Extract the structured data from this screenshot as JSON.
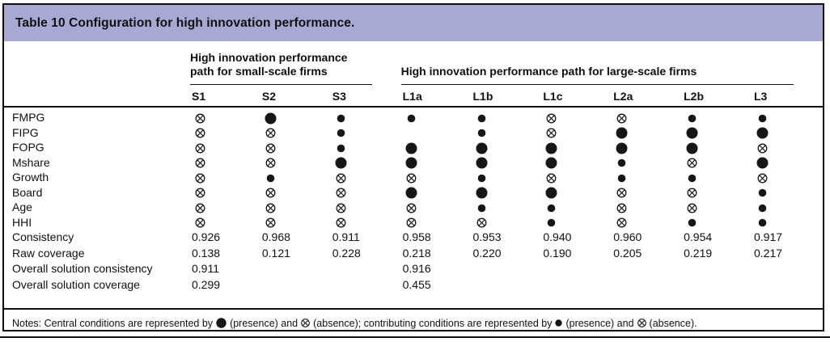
{
  "title": "Table 10 Configuration for high innovation performance.",
  "colors": {
    "header_band": "#a7a8d3",
    "text": "#101010",
    "border": "#101010"
  },
  "symbols": {
    "CP": "central-presence",
    "cp": "contributing-presence",
    "A": "absence",
    "": "blank"
  },
  "table": {
    "column_groups": [
      {
        "label": "High innovation performance path for small-scale firms",
        "span": 3
      },
      {
        "label": "High innovation performance path for large-scale firms",
        "span": 6
      }
    ],
    "columns": [
      "S1",
      "S2",
      "S3",
      "L1a",
      "L1b",
      "L1c",
      "L2a",
      "L2b",
      "L3"
    ],
    "condition_rows": [
      {
        "label": "FMPG",
        "cells": [
          "A",
          "CP",
          "cp",
          "cp",
          "cp",
          "A",
          "A",
          "cp",
          "cp"
        ]
      },
      {
        "label": "FIPG",
        "cells": [
          "A",
          "A",
          "cp",
          "",
          "cp",
          "A",
          "CP",
          "CP",
          "CP"
        ]
      },
      {
        "label": "FOPG",
        "cells": [
          "A",
          "A",
          "cp",
          "CP",
          "CP",
          "CP",
          "CP",
          "CP",
          "A"
        ]
      },
      {
        "label": "Mshare",
        "cells": [
          "A",
          "A",
          "CP",
          "CP",
          "CP",
          "CP",
          "cp",
          "A",
          "CP"
        ]
      },
      {
        "label": "Growth",
        "cells": [
          "A",
          "cp",
          "A",
          "A",
          "cp",
          "A",
          "cp",
          "cp",
          "A"
        ]
      },
      {
        "label": "Board",
        "cells": [
          "A",
          "A",
          "A",
          "CP",
          "CP",
          "CP",
          "A",
          "A",
          "cp"
        ]
      },
      {
        "label": "Age",
        "cells": [
          "A",
          "A",
          "A",
          "A",
          "cp",
          "cp",
          "A",
          "A",
          "cp"
        ]
      },
      {
        "label": "HHI",
        "cells": [
          "A",
          "A",
          "A",
          "A",
          "A",
          "cp",
          "A",
          "cp",
          "cp"
        ]
      }
    ],
    "stat_rows": [
      {
        "label": "Consistency",
        "values": [
          "0.926",
          "0.968",
          "0.911",
          "0.958",
          "0.953",
          "0.940",
          "0.960",
          "0.954",
          "0.917"
        ]
      },
      {
        "label": "Raw coverage",
        "values": [
          "0.138",
          "0.121",
          "0.228",
          "0.218",
          "0.220",
          "0.190",
          "0.205",
          "0.219",
          "0.217"
        ]
      },
      {
        "label": "Overall solution consistency",
        "values": [
          "0.911",
          "",
          "",
          "0.916",
          "",
          "",
          "",
          "",
          ""
        ]
      },
      {
        "label": "Overall solution coverage",
        "values": [
          "0.299",
          "",
          "",
          "0.455",
          "",
          "",
          "",
          "",
          ""
        ]
      }
    ]
  },
  "notes": {
    "part1": "Notes: Central conditions are represented by",
    "part2": "(presence) and",
    "part3": "(absence); contributing conditions are represented by",
    "part4": "(presence) and",
    "part5": "(absence)."
  }
}
